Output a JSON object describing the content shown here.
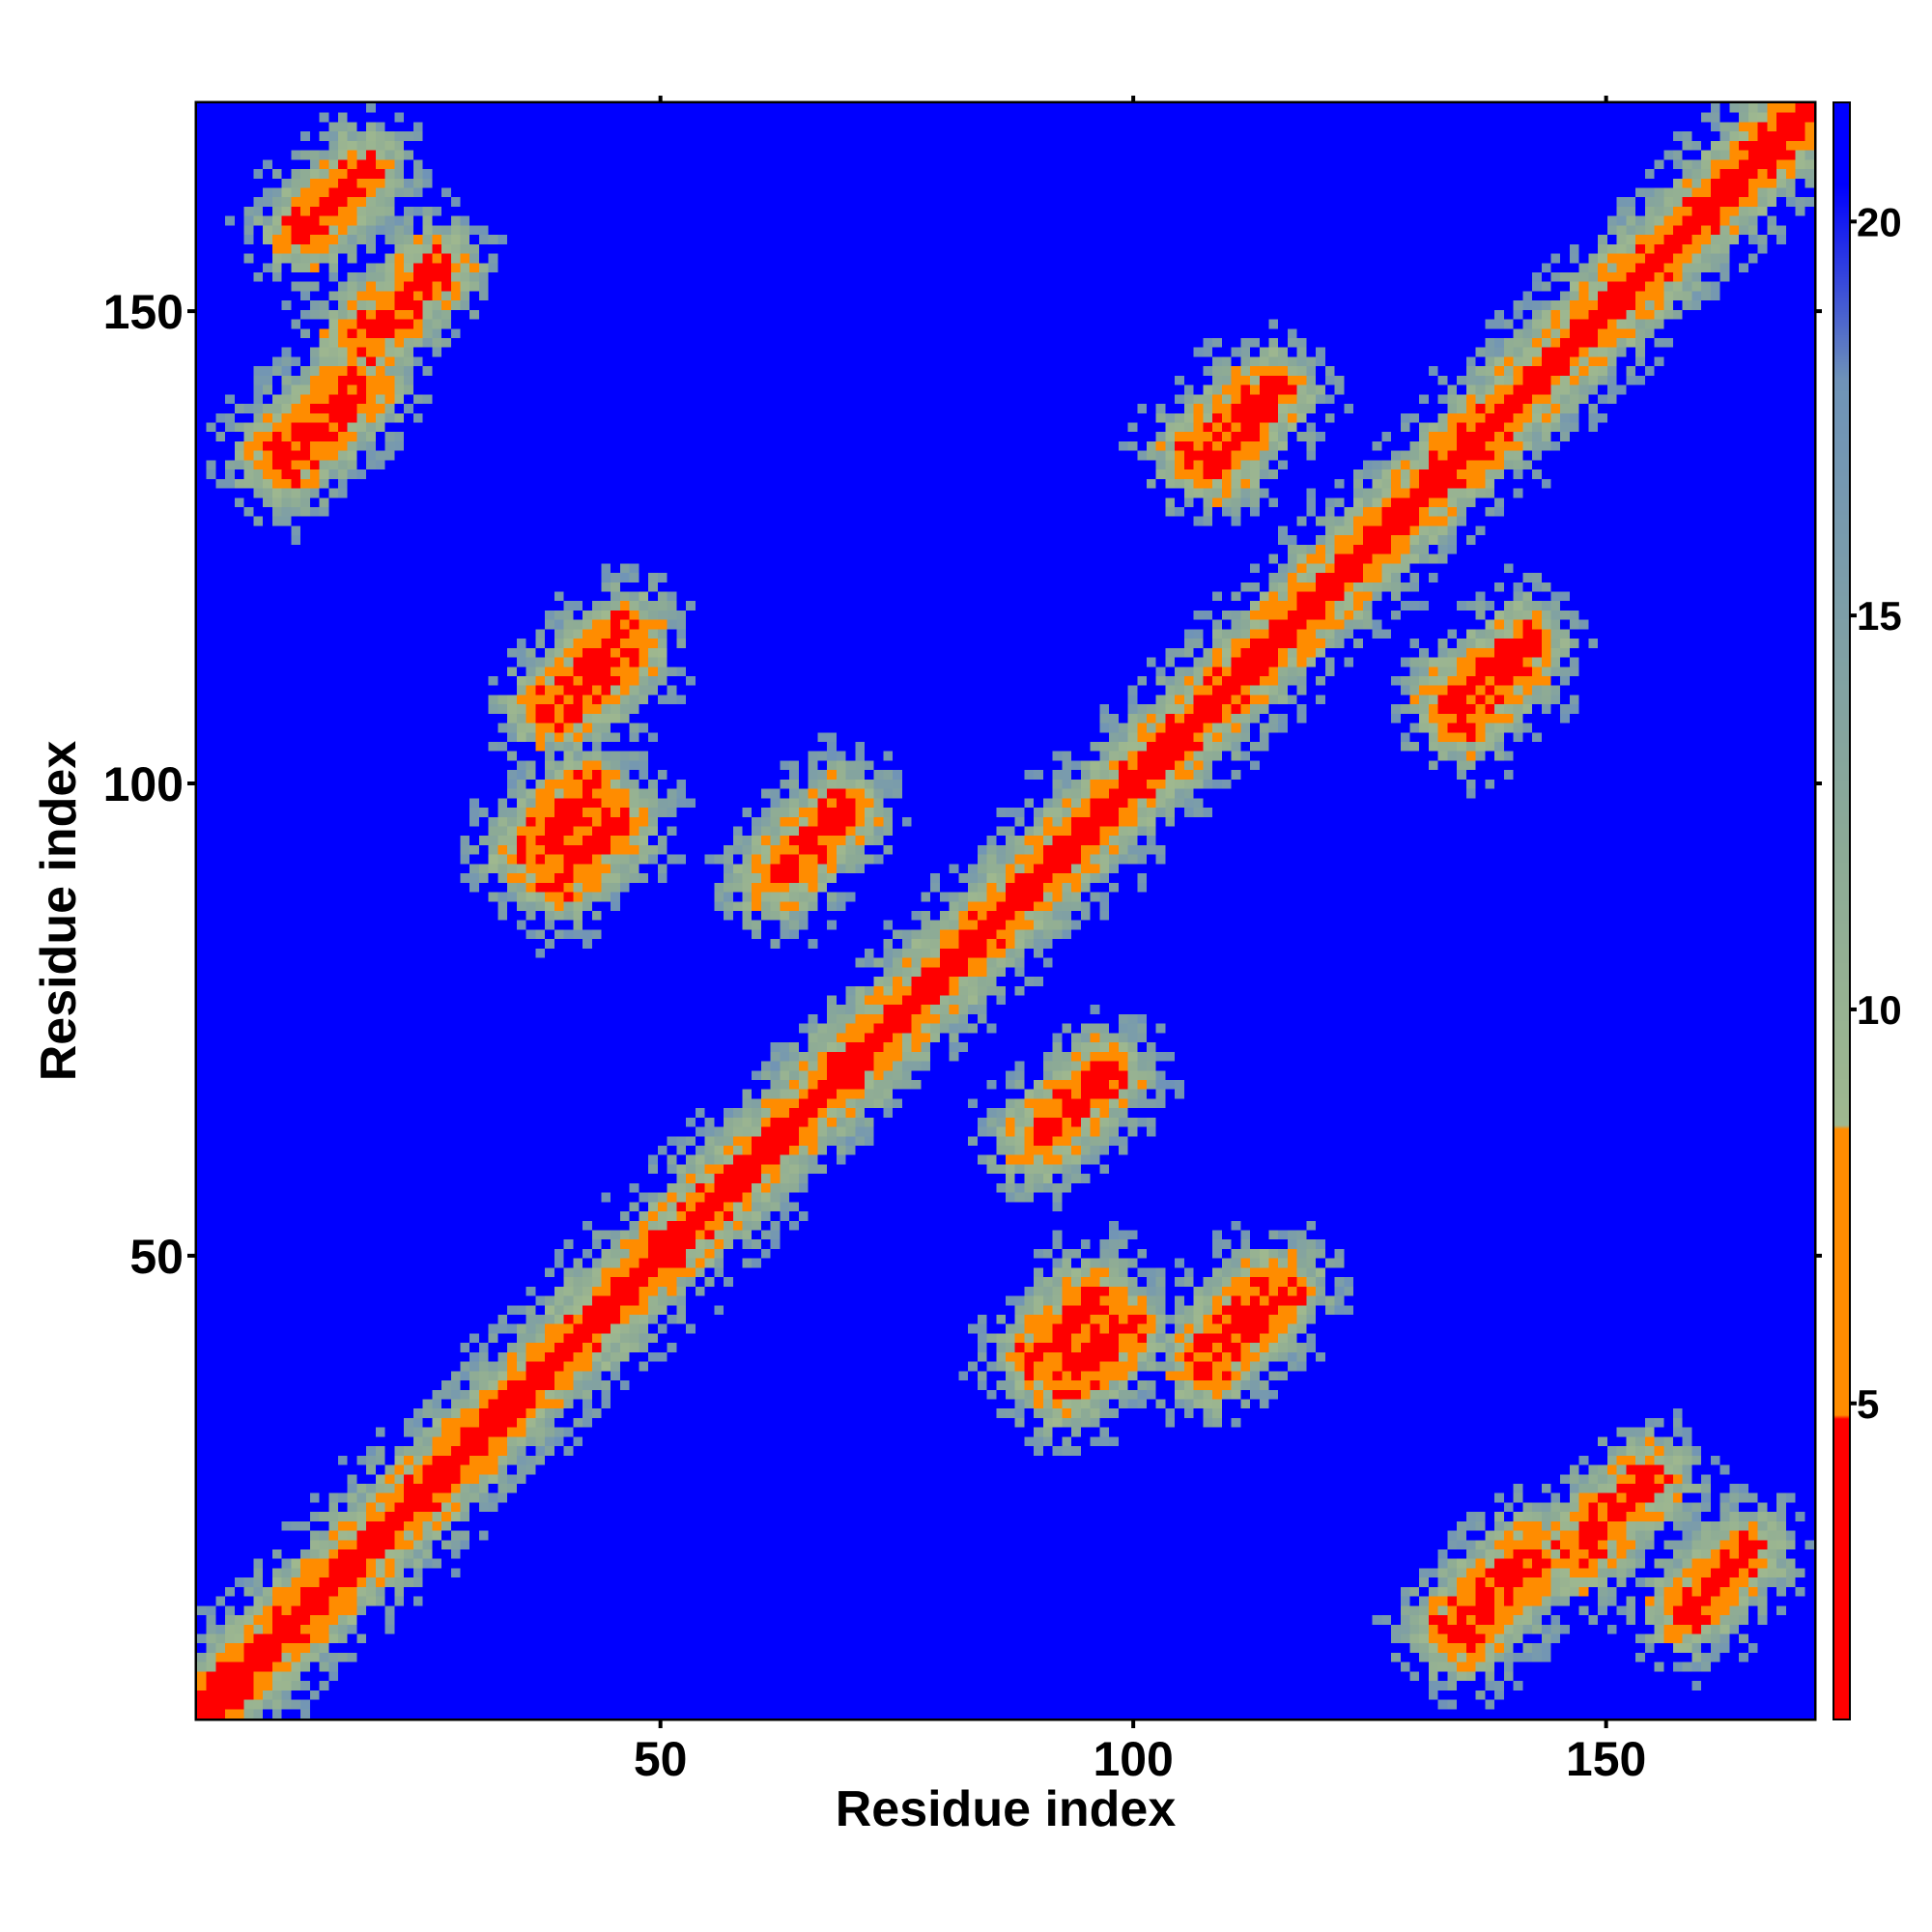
{
  "chart_data": {
    "type": "heatmap",
    "title": "",
    "xlabel": "Residue index",
    "ylabel": "Residue index",
    "n_residues": 172,
    "xlim": [
      1,
      172
    ],
    "ylim": [
      1,
      172
    ],
    "x_ticks": [
      50,
      100,
      150
    ],
    "y_ticks": [
      50,
      100,
      150
    ],
    "x_tick_labels": [
      "50",
      "100",
      "150"
    ],
    "y_tick_labels": [
      "50",
      "100",
      "150"
    ],
    "grid": false,
    "colorbar": {
      "min": 1,
      "max": 21.5,
      "ticks": [
        5,
        10,
        15,
        20
      ],
      "tick_labels": [
        "5",
        "10",
        "15",
        "20"
      ],
      "placement": "right"
    },
    "value_meaning": "distance (color scale); values above ~18 shown as saturated blue",
    "colors": {
      "near": "#ff0000",
      "close": "#ff8c00",
      "mid": "#9fb88f",
      "far": "#6f93b8",
      "background": "#0000ff"
    },
    "contact_segments": [
      {
        "x_start": 1,
        "x_end": 172,
        "y_start": 1,
        "y_end": 172
      },
      {
        "x_start": 18,
        "x_end": 26,
        "y_start": 147,
        "y_end": 155
      },
      {
        "x_start": 9,
        "x_end": 17,
        "y_start": 135,
        "y_end": 143
      },
      {
        "x_start": 38,
        "x_end": 46,
        "y_start": 108,
        "y_end": 116
      },
      {
        "x_start": 36,
        "x_end": 42,
        "y_start": 93,
        "y_end": 99
      },
      {
        "x_start": 62,
        "x_end": 69,
        "y_start": 90,
        "y_end": 97
      },
      {
        "x_start": 90,
        "x_end": 96,
        "y_start": 62,
        "y_end": 68
      },
      {
        "x_start": 90,
        "x_end": 96,
        "y_start": 39,
        "y_end": 45
      },
      {
        "x_start": 108,
        "x_end": 114,
        "y_start": 40,
        "y_end": 46
      },
      {
        "x_start": 107,
        "x_end": 113,
        "y_start": 135,
        "y_end": 141
      },
      {
        "x_start": 134,
        "x_end": 142,
        "y_start": 109,
        "y_end": 115
      },
      {
        "x_start": 134,
        "x_end": 142,
        "y_start": 10,
        "y_end": 18
      },
      {
        "x_start": 159,
        "x_end": 165,
        "y_start": 12,
        "y_end": 18
      }
    ]
  }
}
